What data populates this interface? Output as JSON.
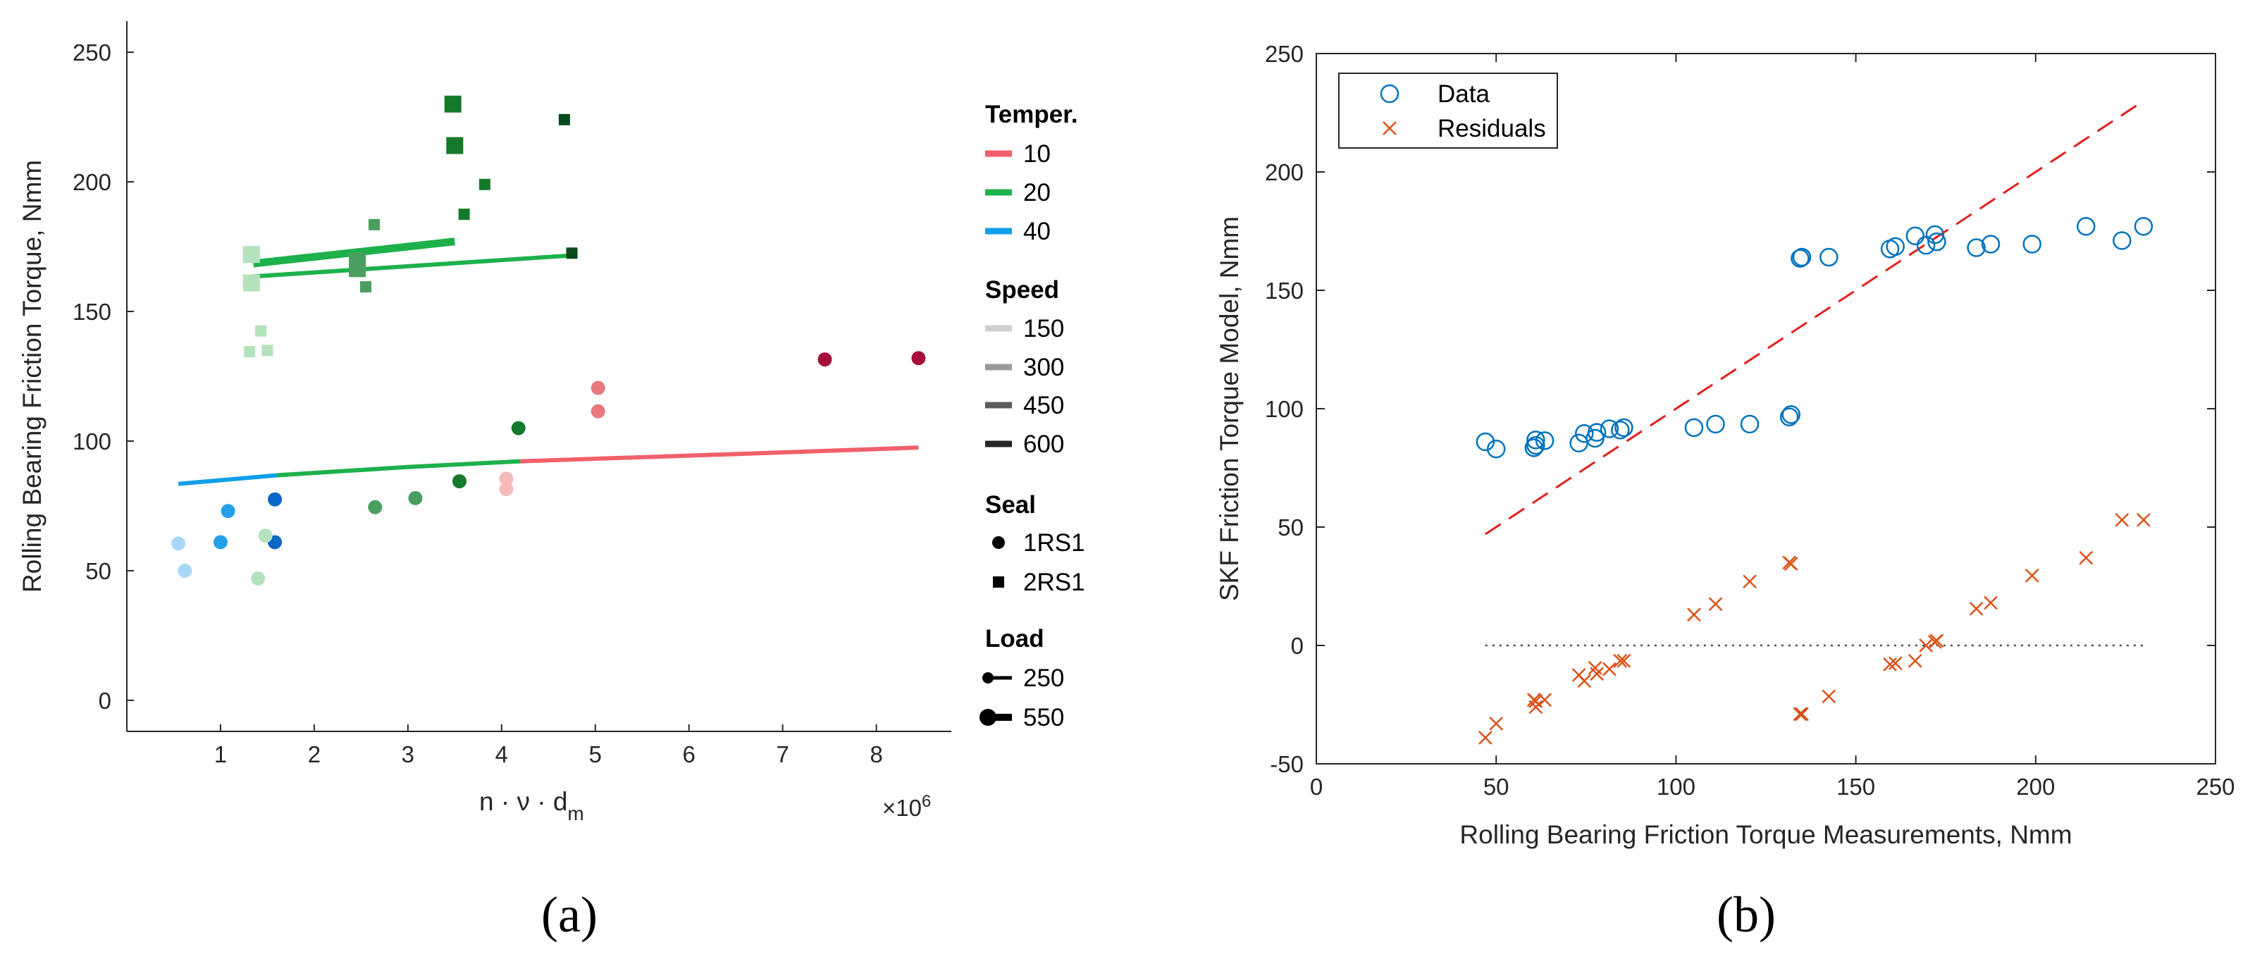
{
  "panel_labels": [
    "(a)",
    "(b)"
  ],
  "chart_data": [
    {
      "id": "a",
      "type": "scatter",
      "xlabel": "n · ν · d",
      "xlabel_sub": "m",
      "x_exponent_label": "×10",
      "x_exponent_power": "6",
      "ylabel": "Rolling Bearing Friction Torque, Nmm",
      "xlim": [
        0,
        8.8
      ],
      "ylim": [
        -12,
        262
      ],
      "xticks": [
        1,
        2,
        3,
        4,
        5,
        6,
        7,
        8
      ],
      "yticks": [
        0,
        50,
        100,
        150,
        200,
        250
      ],
      "legend": {
        "temperature": {
          "title": "Temper.",
          "items": [
            {
              "label": "10",
              "color": "#f0606b"
            },
            {
              "label": "20",
              "color": "#1db14b"
            },
            {
              "label": "40",
              "color": "#109fe8"
            }
          ]
        },
        "speed": {
          "title": "Speed",
          "items": [
            {
              "label": "150",
              "color": "#cfcfcf"
            },
            {
              "label": "300",
              "color": "#9a9a9a"
            },
            {
              "label": "450",
              "color": "#5c5c5c"
            },
            {
              "label": "600",
              "color": "#262626"
            }
          ]
        },
        "seal": {
          "title": "Seal",
          "items": [
            {
              "label": "1RS1",
              "marker": "circle"
            },
            {
              "label": "2RS1",
              "marker": "square"
            }
          ]
        },
        "load": {
          "title": "Load",
          "items": [
            {
              "label": "250",
              "size": "small"
            },
            {
              "label": "550",
              "size": "large"
            }
          ]
        }
      },
      "lines": [
        {
          "color": "#109fe8",
          "points": [
            [
              0.55,
              83.5
            ],
            [
              1.6,
              86.8
            ]
          ]
        },
        {
          "color": "#1db14b",
          "points": [
            [
              1.6,
              86.8
            ],
            [
              3.0,
              90.0
            ],
            [
              4.2,
              92.2
            ]
          ]
        },
        {
          "color": "#f0606b",
          "points": [
            [
              4.2,
              92.2
            ],
            [
              6.5,
              95.0
            ],
            [
              8.45,
              97.5
            ]
          ]
        },
        {
          "color": "#1db14b",
          "points": [
            [
              1.35,
              168.5
            ],
            [
              3.5,
              177.0
            ]
          ],
          "thick": true
        },
        {
          "color": "#1db14b",
          "points": [
            [
              1.35,
              163.5
            ],
            [
              4.7,
              171.5
            ]
          ]
        }
      ],
      "points": [
        {
          "x": 0.55,
          "y": 60.5,
          "marker": "circle",
          "color": "#a8d8f8",
          "size": "small"
        },
        {
          "x": 0.62,
          "y": 50.0,
          "marker": "circle",
          "color": "#a8d8f8",
          "size": "small"
        },
        {
          "x": 1.0,
          "y": 61.0,
          "marker": "circle",
          "color": "#25a0e8",
          "size": "small"
        },
        {
          "x": 1.08,
          "y": 73.0,
          "marker": "circle",
          "color": "#25a0e8",
          "size": "small"
        },
        {
          "x": 1.58,
          "y": 77.5,
          "marker": "circle",
          "color": "#0c66c6",
          "size": "small"
        },
        {
          "x": 1.58,
          "y": 61.0,
          "marker": "circle",
          "color": "#0c66c6",
          "size": "small"
        },
        {
          "x": 1.4,
          "y": 47.0,
          "marker": "circle",
          "color": "#b4e2bc",
          "size": "small"
        },
        {
          "x": 1.48,
          "y": 63.5,
          "marker": "circle",
          "color": "#b4e2bc",
          "size": "small"
        },
        {
          "x": 2.65,
          "y": 74.5,
          "marker": "circle",
          "color": "#4a9e60",
          "size": "small"
        },
        {
          "x": 3.08,
          "y": 78.0,
          "marker": "circle",
          "color": "#4a9e60",
          "size": "small"
        },
        {
          "x": 3.55,
          "y": 84.5,
          "marker": "circle",
          "color": "#167a2c",
          "size": "small"
        },
        {
          "x": 4.18,
          "y": 105.0,
          "marker": "circle",
          "color": "#167a2c",
          "size": "small"
        },
        {
          "x": 4.05,
          "y": 85.5,
          "marker": "circle",
          "color": "#f7baba",
          "size": "small"
        },
        {
          "x": 4.05,
          "y": 81.5,
          "marker": "circle",
          "color": "#f7baba",
          "size": "small"
        },
        {
          "x": 5.03,
          "y": 120.5,
          "marker": "circle",
          "color": "#e47a80",
          "size": "small"
        },
        {
          "x": 5.03,
          "y": 111.5,
          "marker": "circle",
          "color": "#e47a80",
          "size": "small"
        },
        {
          "x": 7.45,
          "y": 131.5,
          "marker": "circle",
          "color": "#a80e3a",
          "size": "small"
        },
        {
          "x": 8.45,
          "y": 132.0,
          "marker": "circle",
          "color": "#a80e3a",
          "size": "small"
        },
        {
          "x": 1.33,
          "y": 172.0,
          "marker": "square",
          "color": "#b4e2bc",
          "size": "large"
        },
        {
          "x": 1.33,
          "y": 161.0,
          "marker": "square",
          "color": "#b4e2bc",
          "size": "large"
        },
        {
          "x": 1.43,
          "y": 142.5,
          "marker": "square",
          "color": "#b4e2bc",
          "size": "small"
        },
        {
          "x": 1.31,
          "y": 134.5,
          "marker": "square",
          "color": "#b4e2bc",
          "size": "small"
        },
        {
          "x": 1.5,
          "y": 135.0,
          "marker": "square",
          "color": "#b4e2bc",
          "size": "small"
        },
        {
          "x": 2.46,
          "y": 169.5,
          "marker": "square",
          "color": "#4a9e60",
          "size": "large"
        },
        {
          "x": 2.46,
          "y": 166.5,
          "marker": "square",
          "color": "#4a9e60",
          "size": "large"
        },
        {
          "x": 2.64,
          "y": 183.5,
          "marker": "square",
          "color": "#4a9e60",
          "size": "small"
        },
        {
          "x": 2.55,
          "y": 159.5,
          "marker": "square",
          "color": "#4a9e60",
          "size": "small"
        },
        {
          "x": 3.48,
          "y": 230.0,
          "marker": "square",
          "color": "#167a2c",
          "size": "large"
        },
        {
          "x": 3.5,
          "y": 214.0,
          "marker": "square",
          "color": "#167a2c",
          "size": "large"
        },
        {
          "x": 3.82,
          "y": 199.0,
          "marker": "square",
          "color": "#167a2c",
          "size": "small"
        },
        {
          "x": 3.6,
          "y": 187.5,
          "marker": "square",
          "color": "#167a2c",
          "size": "small"
        },
        {
          "x": 4.67,
          "y": 224.0,
          "marker": "square",
          "color": "#0a4a1c",
          "size": "small"
        },
        {
          "x": 4.75,
          "y": 172.5,
          "marker": "square",
          "color": "#0a4a1c",
          "size": "small"
        }
      ]
    },
    {
      "id": "b",
      "type": "scatter",
      "xlabel": "Rolling Bearing Friction Torque Measurements, Nmm",
      "ylabel": "SKF Friction Torque Model, Nmm",
      "xlim": [
        0,
        250
      ],
      "ylim": [
        -50,
        250
      ],
      "xticks": [
        0,
        50,
        100,
        150,
        200,
        250
      ],
      "yticks": [
        -50,
        0,
        50,
        100,
        150,
        200,
        250
      ],
      "legend": {
        "position": "top-left",
        "items": [
          {
            "label": "Data",
            "marker": "circle",
            "color": "#0072bd"
          },
          {
            "label": "Residuals",
            "marker": "x",
            "color": "#d95319"
          }
        ]
      },
      "reference_lines": [
        {
          "style": "dashed",
          "color": "#e0201c",
          "from": [
            47,
            47
          ],
          "to": [
            230,
            230
          ]
        },
        {
          "style": "dotted",
          "color": "#4d4d4d",
          "from": [
            47,
            0
          ],
          "to": [
            230,
            0
          ]
        }
      ],
      "series": [
        {
          "name": "Data",
          "marker": "circle",
          "color": "#0072bd",
          "x": [
            47,
            50,
            60.5,
            61,
            61,
            63.5,
            73,
            74.5,
            77.5,
            78,
            81.5,
            84.5,
            85.5,
            105,
            111,
            120.5,
            131.5,
            132,
            134.5,
            135,
            142.5,
            159.5,
            161,
            166.5,
            169.5,
            172,
            172.5,
            183.5,
            187.5,
            199,
            214,
            224,
            230
          ],
          "y": [
            86,
            83,
            83.5,
            86.8,
            84.5,
            86.5,
            85.5,
            89.5,
            87.5,
            90,
            91.5,
            91,
            92,
            92,
            93.5,
            93.5,
            96.5,
            97.5,
            163.5,
            164,
            164,
            167.5,
            168.5,
            173,
            169,
            173.5,
            170.5,
            168,
            169.5,
            169.5,
            177,
            171,
            177
          ]
        },
        {
          "name": "Residuals",
          "marker": "x",
          "color": "#d95319",
          "x": [
            47,
            50,
            60.5,
            61,
            61,
            63.5,
            73,
            74.5,
            77.5,
            78,
            81.5,
            84.5,
            85.5,
            105,
            111,
            120.5,
            131.5,
            132,
            134.5,
            135,
            142.5,
            159.5,
            161,
            166.5,
            169.5,
            172,
            172.5,
            183.5,
            187.5,
            199,
            214,
            224,
            230
          ],
          "y": [
            -39,
            -33,
            -23,
            -26,
            -23.5,
            -23,
            -12.5,
            -15,
            -9.5,
            -12,
            -10,
            -6.5,
            -6.5,
            13,
            17.5,
            27,
            35,
            34.5,
            -29,
            -29,
            -21.5,
            -8,
            -7.5,
            -6.5,
            0,
            1.5,
            2,
            15.5,
            18,
            29.5,
            37,
            53,
            53
          ]
        }
      ]
    }
  ]
}
